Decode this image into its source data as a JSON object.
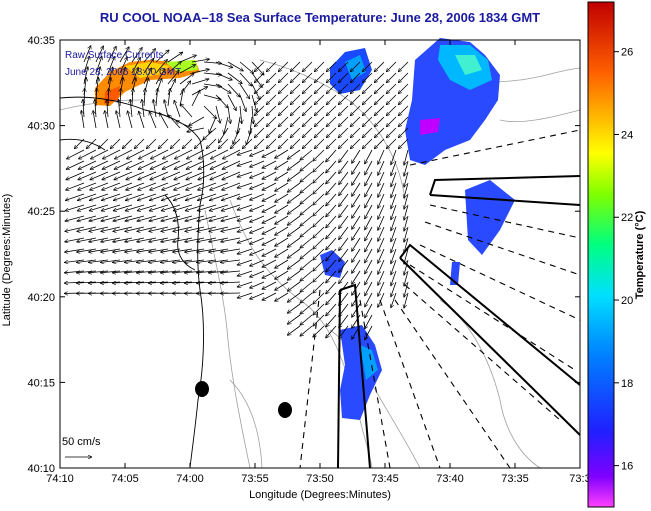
{
  "title": "RU COOL  NOAA–18  Sea Surface Temperature:  June 28, 2006 1834 GMT",
  "legend": {
    "line1": "Raw Surface Currents",
    "line2": "June 28, 2006 18:00 GMT"
  },
  "scale": {
    "label": "50 cm/s"
  },
  "axes": {
    "xlabel": "Longitude (Degrees:Minutes)",
    "ylabel": "Latitude (Degrees:Minutes)",
    "xticks": [
      "74:10",
      "74:05",
      "74:00",
      "73:55",
      "73:50",
      "73:45",
      "73:40",
      "73:35",
      "73:3"
    ],
    "yticks": [
      "40:35",
      "40:30",
      "40:25",
      "40:20",
      "40:15",
      "40:10"
    ]
  },
  "colorbar": {
    "label": "Temperature (°C)",
    "ticks": [
      "26",
      "24",
      "22",
      "20",
      "18",
      "16"
    ],
    "min": 15,
    "max": 27.2
  },
  "colors": {
    "title": "#1a1aa0",
    "sst_cold": "#1a3cff",
    "sst_mid": "#00c8ff",
    "sst_warm": "#ff6000"
  }
}
